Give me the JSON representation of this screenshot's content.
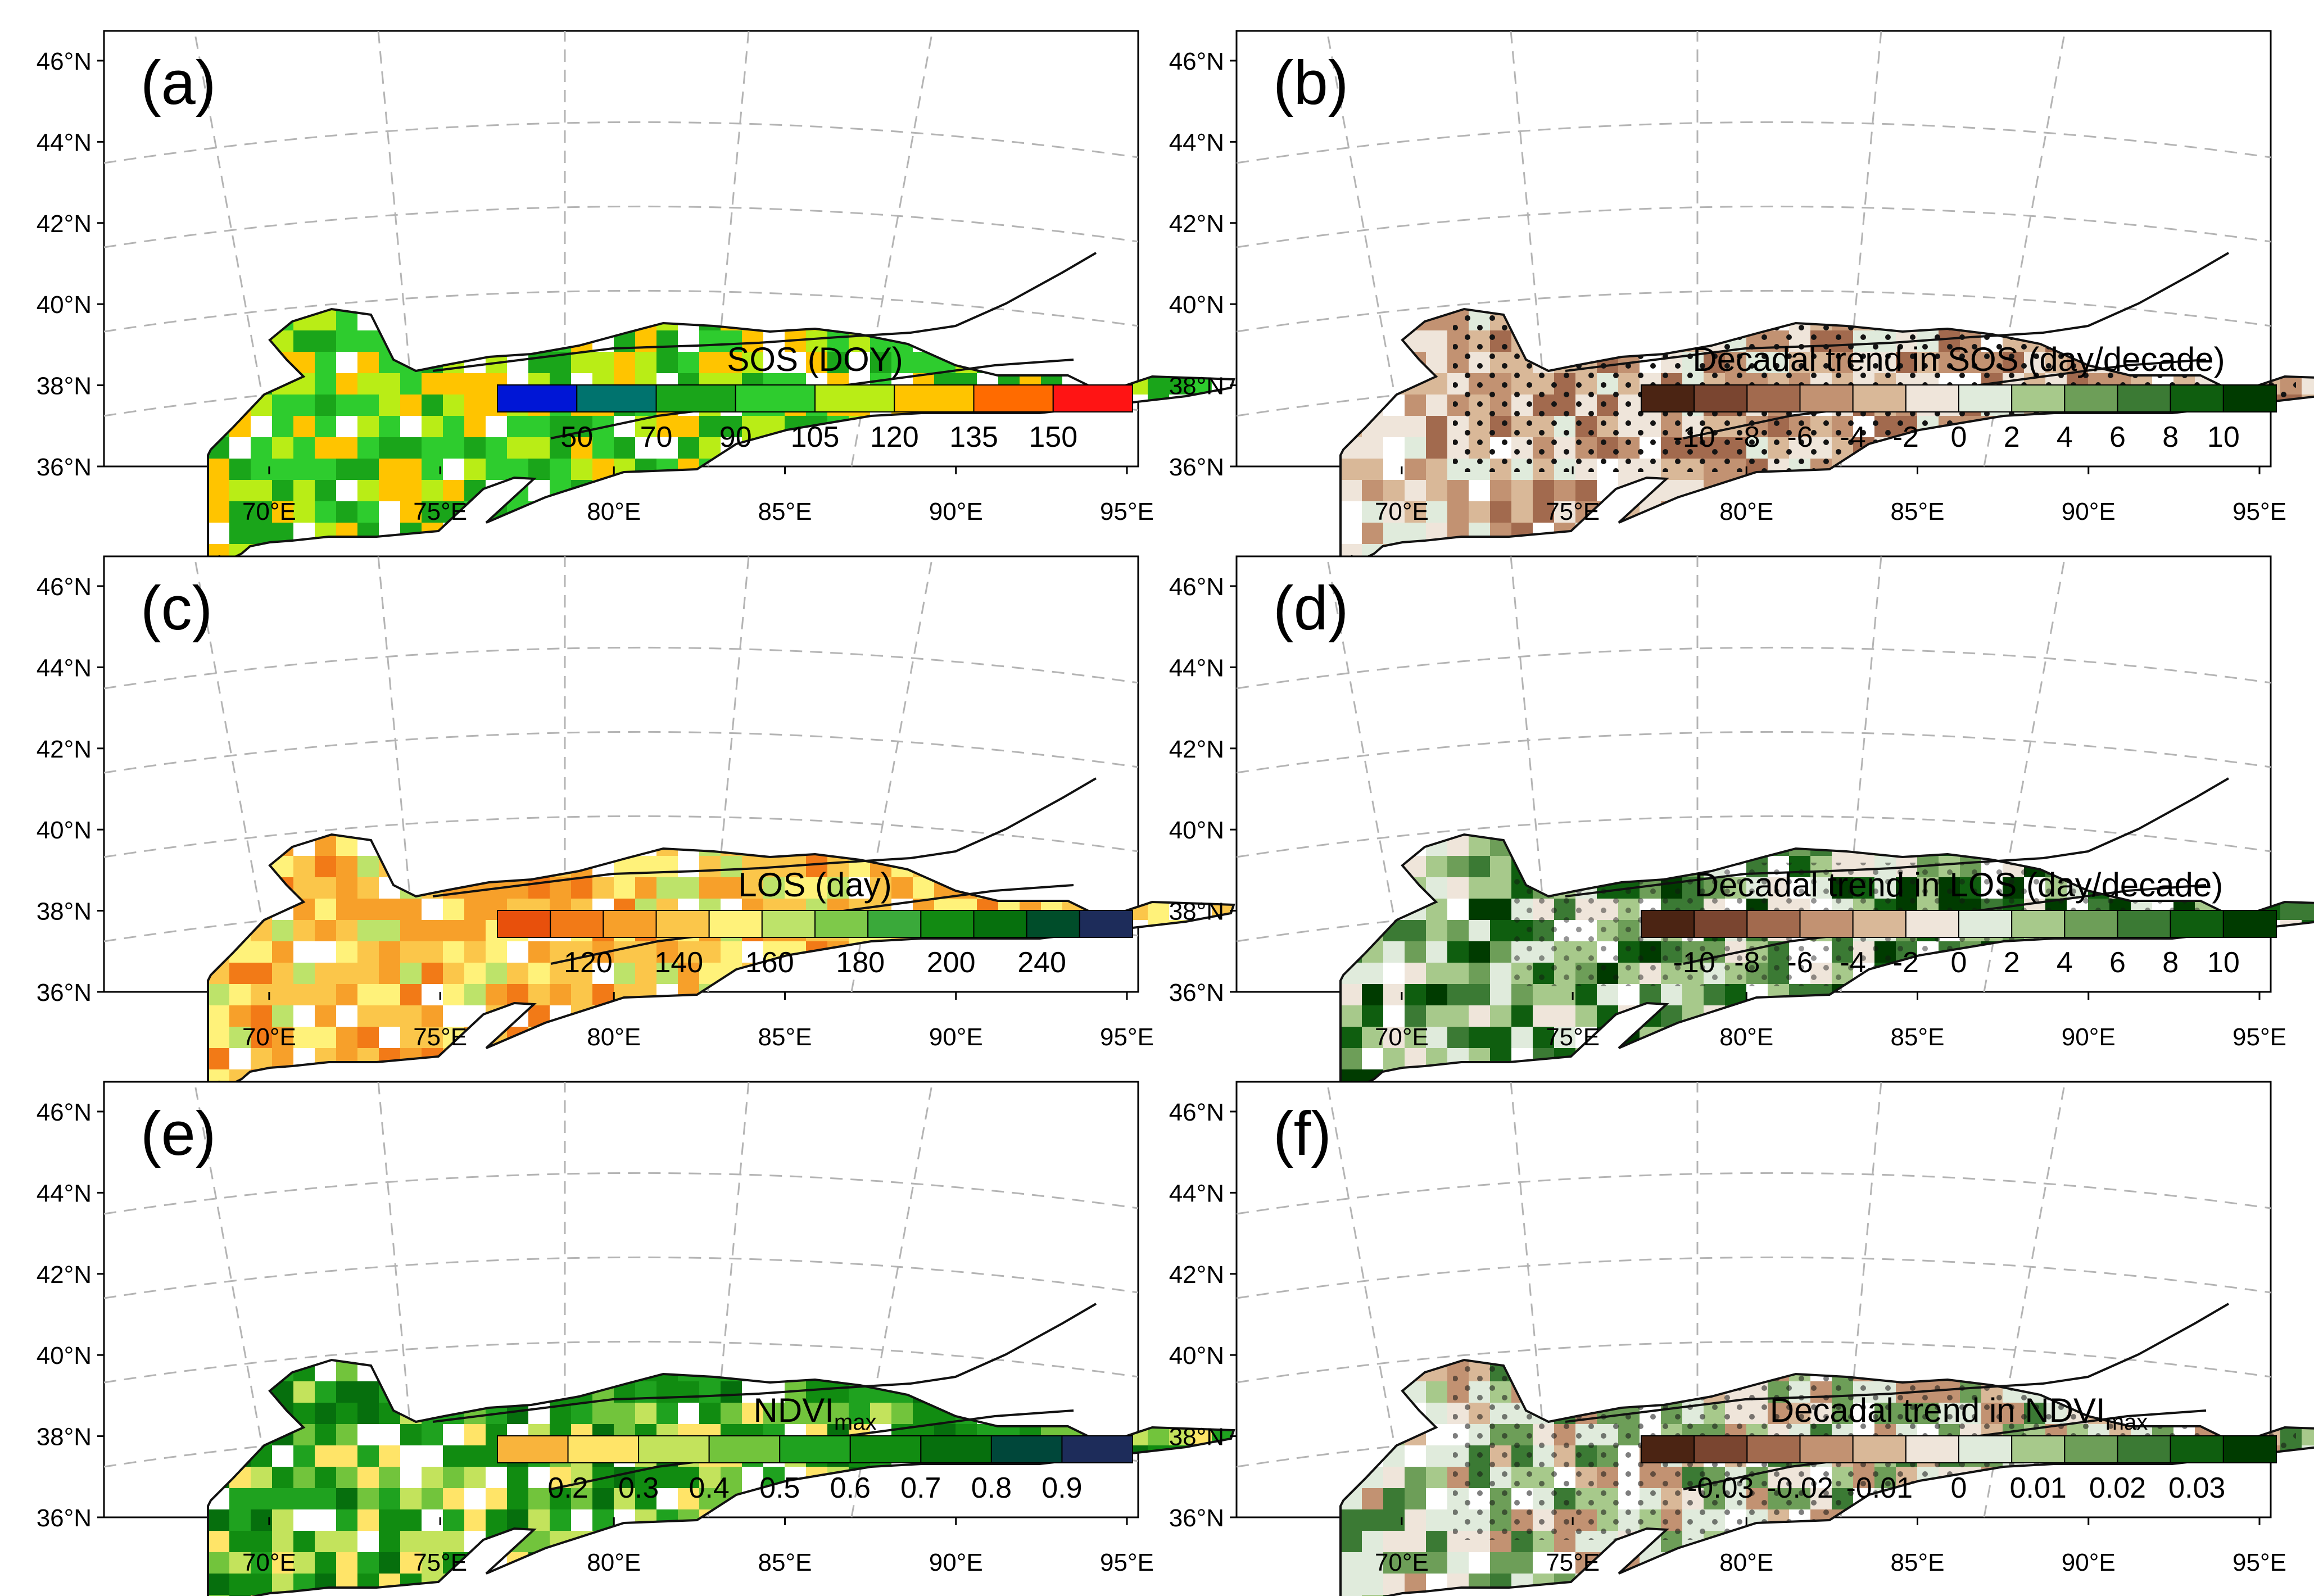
{
  "figure": {
    "panels": [
      {
        "id": "a",
        "letter": "(a)",
        "variable": "SOS",
        "title": "SOS (DOY)",
        "title_sub": "",
        "title_tail": "",
        "legend_colors": [
          "#0016d6",
          "#00736e",
          "#1aa51a",
          "#2ecc2e",
          "#b9ed16",
          "#ffc400",
          "#ff6b00",
          "#ff1414"
        ],
        "legend_labels": [
          "50",
          "70",
          "90",
          "105",
          "120",
          "135",
          "150"
        ],
        "map_palette": [
          "#2ecc2e",
          "#1aa51a",
          "#b9ed16",
          "#ffc400",
          "#b9ed16",
          "#2ecc2e",
          "#ffc400",
          "#1aa51a"
        ],
        "stippled": false
      },
      {
        "id": "b",
        "letter": "(b)",
        "variable": "SOS trend",
        "title": "Decadal trend in SOS (day/decade)",
        "title_sub": "",
        "title_tail": "",
        "legend_colors": [
          "#4b2413",
          "#7a4530",
          "#a26a4e",
          "#c29272",
          "#d9b898",
          "#efe5da",
          "#e0ebdc",
          "#a7c98b",
          "#6d9e58",
          "#3b7a34",
          "#0f5e0f",
          "#003b00"
        ],
        "legend_labels": [
          "-10",
          "-8",
          "-6",
          "-4",
          "-2",
          "0",
          "2",
          "4",
          "6",
          "8",
          "10"
        ],
        "map_palette": [
          "#c29272",
          "#d9b898",
          "#efe5da",
          "#a26a4e",
          "#e0ebdc",
          "#d9b898",
          "#c29272",
          "#efe5da"
        ],
        "stippled": true
      },
      {
        "id": "c",
        "letter": "(c)",
        "variable": "LOS",
        "title": "LOS (day)",
        "title_sub": "",
        "title_tail": "",
        "legend_colors": [
          "#e8500c",
          "#f27a17",
          "#f7a02a",
          "#fbc64a",
          "#fff27a",
          "#bde36a",
          "#7ec94a",
          "#3aa93a",
          "#128a12",
          "#06700d",
          "#004d2a",
          "#1d2c5a"
        ],
        "legend_labels": [
          "120",
          "140",
          "160",
          "180",
          "200",
          "240"
        ],
        "map_palette": [
          "#fbc64a",
          "#f7a02a",
          "#fff27a",
          "#f27a17",
          "#fbc64a",
          "#bde36a",
          "#f7a02a",
          "#fff27a"
        ],
        "stippled": false
      },
      {
        "id": "d",
        "letter": "(d)",
        "variable": "LOS trend",
        "title": "Decadal trend in LOS (day/decade)",
        "title_sub": "",
        "title_tail": "",
        "legend_colors": [
          "#4b2413",
          "#7a4530",
          "#a26a4e",
          "#c29272",
          "#d9b898",
          "#efe5da",
          "#e0ebdc",
          "#a7c98b",
          "#6d9e58",
          "#3b7a34",
          "#0f5e0f",
          "#003b00"
        ],
        "legend_labels": [
          "-10",
          "-8",
          "-6",
          "-4",
          "-2",
          "0",
          "2",
          "4",
          "6",
          "8",
          "10"
        ],
        "map_palette": [
          "#3b7a34",
          "#a7c98b",
          "#e0ebdc",
          "#0f5e0f",
          "#6d9e58",
          "#efe5da",
          "#003b00",
          "#a7c98b"
        ],
        "stippled": true
      },
      {
        "id": "e",
        "letter": "(e)",
        "variable": "NDVImax",
        "title": "NDVI",
        "title_sub": "max",
        "title_tail": "",
        "legend_colors": [
          "#f9b43c",
          "#ffe468",
          "#c3e35c",
          "#72c43c",
          "#1fa21f",
          "#118c11",
          "#066f0d",
          "#00473a",
          "#1d2c5a"
        ],
        "legend_labels": [
          "0.2",
          "0.3",
          "0.4",
          "0.5",
          "0.6",
          "0.7",
          "0.8",
          "0.9"
        ],
        "map_palette": [
          "#1fa21f",
          "#118c11",
          "#72c43c",
          "#066f0d",
          "#ffe468",
          "#1fa21f",
          "#c3e35c",
          "#118c11"
        ],
        "stippled": false
      },
      {
        "id": "f",
        "letter": "(f)",
        "variable": "NDVImax trend",
        "title": "Decadal trend in NDVI",
        "title_sub": "max",
        "title_tail": "",
        "legend_colors": [
          "#4b2413",
          "#7a4530",
          "#a26a4e",
          "#c29272",
          "#d9b898",
          "#efe5da",
          "#e0ebdc",
          "#a7c98b",
          "#6d9e58",
          "#3b7a34",
          "#0f5e0f",
          "#003b00"
        ],
        "legend_labels": [
          "-0.03",
          "-0.02",
          "-0.01",
          "0",
          "0.01",
          "0.02",
          "0.03"
        ],
        "map_palette": [
          "#e0ebdc",
          "#a7c98b",
          "#efe5da",
          "#6d9e58",
          "#d9b898",
          "#3b7a34",
          "#e0ebdc",
          "#c29272"
        ],
        "stippled": true
      }
    ],
    "lat_labels": [
      "46°N",
      "44°N",
      "42°N",
      "40°N",
      "38°N",
      "36°N"
    ],
    "lon_labels": [
      "70°E",
      "75°E",
      "80°E",
      "85°E",
      "90°E",
      "95°E"
    ],
    "colors": {
      "frame": "#000000",
      "graticule": "#b4b4b4",
      "boundary": "#111111",
      "stipple": "#141414"
    }
  }
}
